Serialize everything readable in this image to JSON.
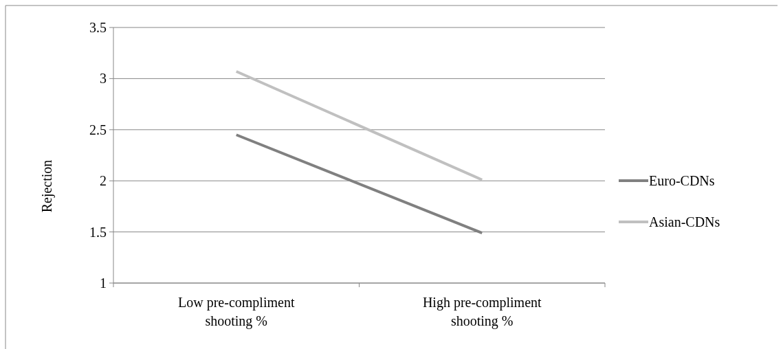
{
  "chart_data": {
    "type": "line",
    "ylabel": "Rejection",
    "categories": [
      "Low pre-compliment shooting %",
      "High pre-compliment shooting %"
    ],
    "series": [
      {
        "name": "Euro-CDNs",
        "color": "#808080",
        "values": [
          2.45,
          1.49
        ]
      },
      {
        "name": "Asian-CDNs",
        "color": "#c0c0c0",
        "values": [
          3.07,
          2.01
        ]
      }
    ],
    "ylim": [
      1,
      3.5
    ],
    "yticks": [
      1,
      1.5,
      2,
      2.5,
      3,
      3.5
    ],
    "grid": "y",
    "legend": "right",
    "marker": "none",
    "line_style": "solid"
  }
}
